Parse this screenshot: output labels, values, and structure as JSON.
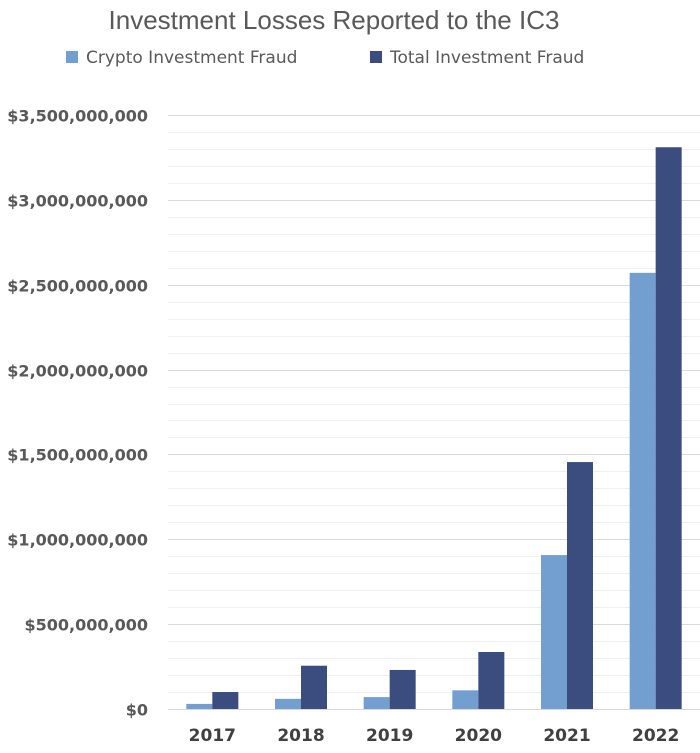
{
  "chart_data": {
    "type": "bar",
    "title": "Investment Losses Reported to the IC3",
    "xlabel": "",
    "ylabel": "",
    "categories": [
      "2017",
      "2018",
      "2019",
      "2020",
      "2021",
      "2022"
    ],
    "series": [
      {
        "name": "Crypto Investment Fraud",
        "color": "#729fcf",
        "values": [
          30000000,
          60000000,
          70000000,
          110000000,
          907000000,
          2570000000
        ]
      },
      {
        "name": "Total Investment Fraud",
        "color": "#3b4d7e",
        "values": [
          100000000,
          255000000,
          230000000,
          336000000,
          1455000000,
          3310000000
        ]
      }
    ],
    "ylim": [
      0,
      3500000000
    ],
    "y_ticks": [
      {
        "value": 0,
        "label": "$0"
      },
      {
        "value": 500000000,
        "label": "$500,000,000"
      },
      {
        "value": 1000000000,
        "label": "$1,000,000,000"
      },
      {
        "value": 1500000000,
        "label": "$1,500,000,000"
      },
      {
        "value": 2000000000,
        "label": "$2,000,000,000"
      },
      {
        "value": 2500000000,
        "label": "$2,500,000,000"
      },
      {
        "value": 3000000000,
        "label": "$3,000,000,000"
      },
      {
        "value": 3500000000,
        "label": "$3,500,000,000"
      }
    ],
    "minor_grid_step": 100000000,
    "grid": true,
    "legend_position": "top"
  }
}
